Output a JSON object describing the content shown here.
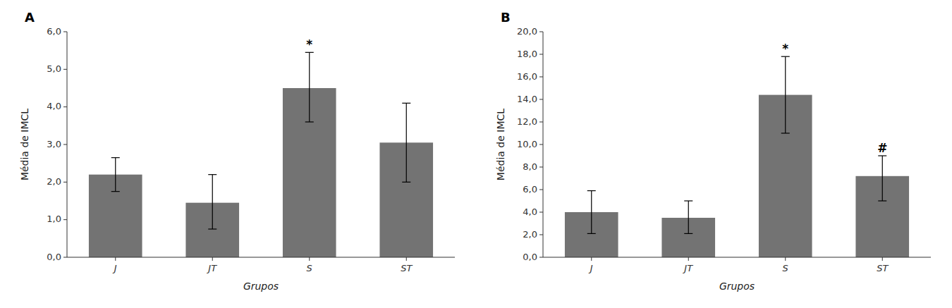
{
  "chart_data": [
    {
      "type": "bar",
      "title": "A",
      "categories": [
        "J",
        "JT",
        "S",
        "ST"
      ],
      "values": [
        2.2,
        1.45,
        4.5,
        3.05
      ],
      "errors_low": [
        0.45,
        0.7,
        0.9,
        1.05
      ],
      "errors_high": [
        0.45,
        0.75,
        0.95,
        1.05
      ],
      "annotations": [
        null,
        null,
        "*",
        null
      ],
      "ylabel": "Média de IMCL",
      "xlabel": "Grupos",
      "color": "#737373",
      "grid": false,
      "ylim": [
        0,
        6.0
      ],
      "yticks": [
        {
          "value": 0.0,
          "label": "0,0"
        },
        {
          "value": 1.0,
          "label": "1,0"
        },
        {
          "value": 2.0,
          "label": "2,0"
        },
        {
          "value": 3.0,
          "label": "3,0"
        },
        {
          "value": 4.0,
          "label": "4,0"
        },
        {
          "value": 5.0,
          "label": "5,0"
        },
        {
          "value": 6.0,
          "label": "6,0"
        }
      ]
    },
    {
      "type": "bar",
      "title": "B",
      "categories": [
        "J",
        "JT",
        "S",
        "ST"
      ],
      "values": [
        4.0,
        3.5,
        14.4,
        7.2
      ],
      "errors_low": [
        1.9,
        1.4,
        3.4,
        2.2
      ],
      "errors_high": [
        1.9,
        1.5,
        3.4,
        1.8
      ],
      "annotations": [
        null,
        null,
        "*",
        "#"
      ],
      "ylabel": "Média de IMCL",
      "xlabel": "Grupos",
      "color": "#737373",
      "grid": false,
      "ylim": [
        0,
        20.0
      ],
      "yticks": [
        {
          "value": 0.0,
          "label": "0,0"
        },
        {
          "value": 2.0,
          "label": "2,0"
        },
        {
          "value": 4.0,
          "label": "4,0"
        },
        {
          "value": 6.0,
          "label": "6,0"
        },
        {
          "value": 8.0,
          "label": "8,0"
        },
        {
          "value": 10.0,
          "label": "10,0"
        },
        {
          "value": 12.0,
          "label": "12,0"
        },
        {
          "value": 14.0,
          "label": "14,0"
        },
        {
          "value": 16.0,
          "label": "16,0"
        },
        {
          "value": 18.0,
          "label": "18,0"
        },
        {
          "value": 20.0,
          "label": "20,0"
        }
      ]
    }
  ]
}
